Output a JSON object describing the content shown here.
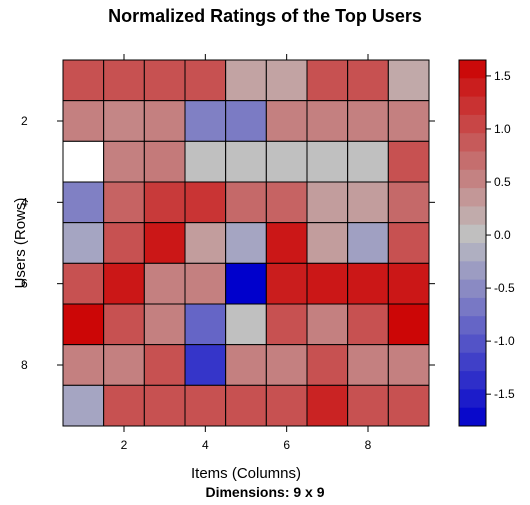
{
  "chart_data": {
    "type": "heatmap",
    "title": "Normalized Ratings of the Top Users",
    "subtitle": "Dimensions: 9 x 9",
    "xlabel": "Items (Columns)",
    "ylabel": "Users (Rows)",
    "xlim": [
      0.5,
      9.5
    ],
    "ylim": [
      0.5,
      9.5
    ],
    "x_ticks": [
      2,
      4,
      6,
      8
    ],
    "y_ticks": [
      2,
      4,
      6,
      8
    ],
    "colorbar": {
      "range": [
        -1.8,
        1.65
      ],
      "ticks": [
        1.5,
        1.0,
        0.5,
        0.0,
        -0.5,
        -1.0,
        -1.5
      ],
      "tick_labels": [
        "1.5",
        "1.0",
        "0.5",
        "0.0",
        "-0.5",
        "-1.0",
        "-1.5"
      ],
      "low_color": "#0000cc",
      "mid_color": "#c0c0c0",
      "high_color": "#cc0000"
    },
    "rows": [
      1,
      2,
      3,
      4,
      5,
      6,
      7,
      8,
      9
    ],
    "columns": [
      1,
      2,
      3,
      4,
      5,
      6,
      7,
      8,
      9
    ],
    "values": [
      [
        0.95,
        0.95,
        0.95,
        0.95,
        0.25,
        0.25,
        0.95,
        0.95,
        0.2
      ],
      [
        0.55,
        0.5,
        0.55,
        -0.6,
        -0.65,
        0.55,
        0.55,
        0.55,
        0.55
      ],
      [
        null,
        0.55,
        0.6,
        0.0,
        0.0,
        0.0,
        0.0,
        0.0,
        0.95
      ],
      [
        -0.6,
        0.8,
        1.15,
        1.2,
        0.75,
        0.8,
        0.3,
        0.3,
        0.75
      ],
      [
        -0.25,
        0.95,
        1.45,
        0.3,
        -0.25,
        1.45,
        0.3,
        -0.3,
        0.95
      ],
      [
        0.95,
        1.45,
        0.55,
        0.55,
        -1.8,
        1.4,
        1.45,
        1.45,
        1.45
      ],
      [
        1.6,
        0.95,
        0.55,
        -0.85,
        0.0,
        0.95,
        0.55,
        0.95,
        1.6
      ],
      [
        0.55,
        0.55,
        0.95,
        -1.3,
        0.55,
        0.55,
        0.95,
        0.55,
        0.55
      ],
      [
        -0.25,
        0.95,
        0.95,
        0.95,
        0.95,
        0.95,
        1.35,
        0.95,
        0.95
      ]
    ]
  }
}
